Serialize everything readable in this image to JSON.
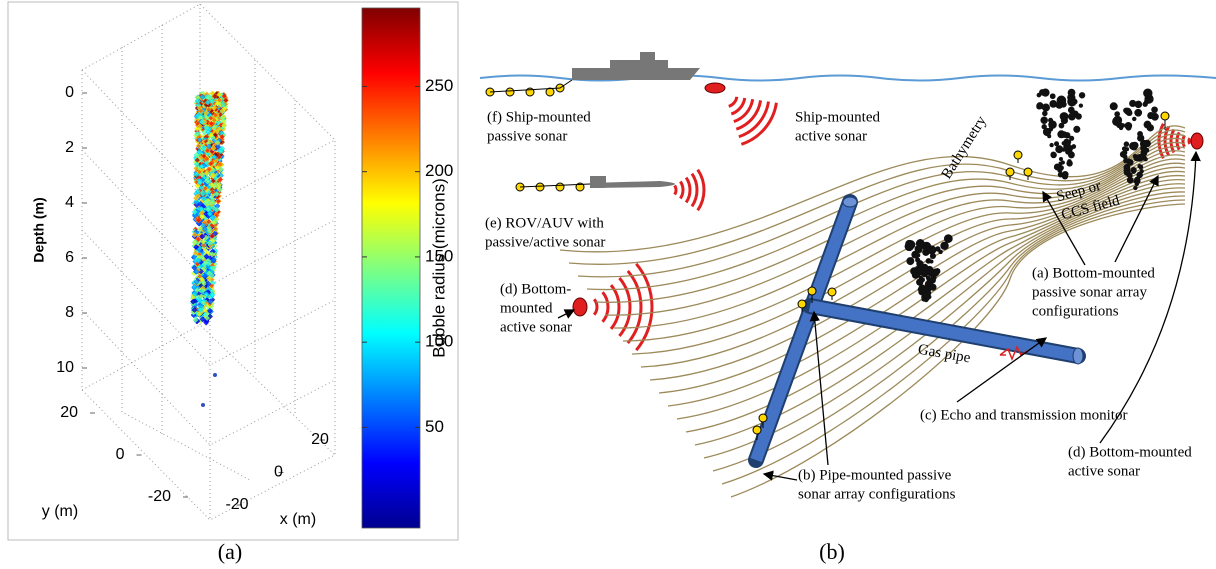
{
  "panel_a": {
    "axis_labels": {
      "depth": "Depth (m)",
      "y": "y (m)",
      "x": "x (m)"
    },
    "depth_ticks": [
      0,
      2,
      4,
      6,
      8,
      10
    ],
    "y_ticks": [
      20,
      0,
      -20
    ],
    "x_ticks": [
      20,
      0,
      -20
    ],
    "colorbar": {
      "label": "Bubble radius (microns)",
      "range": [
        -9,
        296
      ],
      "ticks": [
        50,
        100,
        150,
        200,
        250
      ]
    }
  },
  "panel_b": {
    "labels": [
      {
        "lines": [
          "(f) Ship-mounted",
          "passive sonar"
        ]
      },
      {
        "lines": [
          "Ship-mounted",
          "active sonar"
        ]
      },
      {
        "lines": [
          "(e) ROV/AUV with",
          "passive/active sonar"
        ]
      },
      {
        "lines": [
          "(d) Bottom-",
          "mounted",
          "active sonar"
        ]
      },
      {
        "lines": [
          "Bathymetry"
        ]
      },
      {
        "lines": [
          "Seep or",
          "CCS field"
        ]
      },
      {
        "lines": [
          "(a) Bottom-mounted",
          "passive sonar array",
          "configurations"
        ]
      },
      {
        "lines": [
          "Gas pipe"
        ]
      },
      {
        "lines": [
          "(c) Echo and transmission monitor"
        ]
      },
      {
        "lines": [
          "(b) Pipe-mounted passive",
          "sonar array configurations"
        ]
      },
      {
        "lines": [
          "(d) Bottom-mounted",
          "active sonar"
        ]
      }
    ]
  },
  "captions": [
    "(a)",
    "(b)"
  ]
}
